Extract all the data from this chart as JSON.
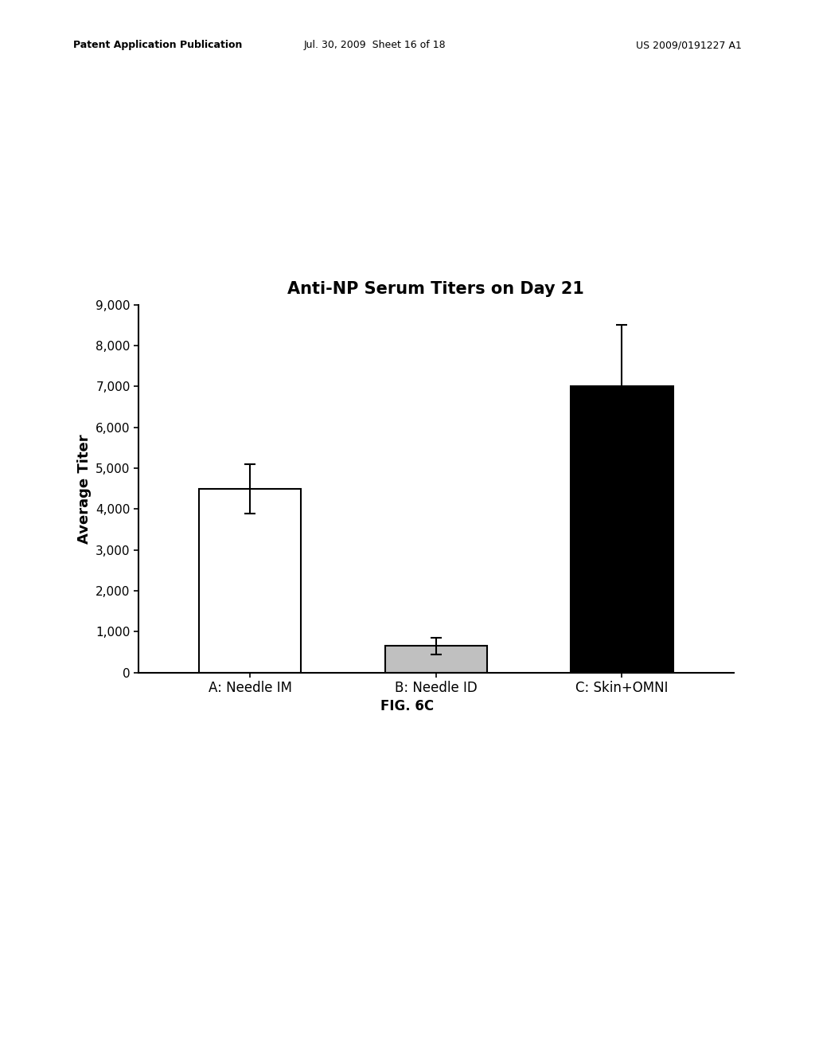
{
  "title": "Anti-NP Serum Titers on Day 21",
  "xlabel": "",
  "ylabel": "Average Titer",
  "categories": [
    "A: Needle IM",
    "B: Needle ID",
    "C: Skin+OMNI"
  ],
  "values": [
    4500,
    650,
    7000
  ],
  "errors": [
    600,
    200,
    1500
  ],
  "bar_colors": [
    "#ffffff",
    "#c0c0c0",
    "#000000"
  ],
  "bar_edgecolors": [
    "#000000",
    "#000000",
    "#000000"
  ],
  "ylim": [
    0,
    9000
  ],
  "yticks": [
    0,
    1000,
    2000,
    3000,
    4000,
    5000,
    6000,
    7000,
    8000,
    9000
  ],
  "ytick_labels": [
    "0",
    "1,000",
    "2,000",
    "3,000",
    "4,000",
    "5,000",
    "6,000",
    "7,000",
    "8,000",
    "9,000"
  ],
  "title_fontsize": 15,
  "axis_label_fontsize": 13,
  "tick_fontsize": 11,
  "xlabel_fontsize": 12,
  "fig_caption": "FIG. 6C",
  "background_color": "#ffffff",
  "bar_width": 0.55,
  "header_left": "Patent Application Publication",
  "header_mid": "Jul. 30, 2009  Sheet 16 of 18",
  "header_right": "US 2009/0191227 A1"
}
